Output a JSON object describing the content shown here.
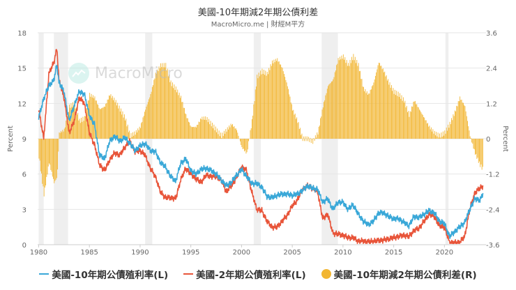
{
  "header": {
    "title": "美國-10年期減2年期公債利差",
    "subtitle": "MacroMicro.me | 財經M平方"
  },
  "watermark": {
    "text": "MacroMicro",
    "icon": "chart-line-icon"
  },
  "colors": {
    "ten_year": "#3aa8d8",
    "two_year": "#e8553a",
    "spread": "#f2b632",
    "recession_band": "#efefef",
    "grid": "#e6e6e6"
  },
  "legend": [
    {
      "label": "美國-10年期公債殖利率(L)",
      "color": "#3aa8d8",
      "shape": "line"
    },
    {
      "label": "美國-2年期公債殖利率(L)",
      "color": "#e8553a",
      "shape": "line"
    },
    {
      "label": "美國-10年期減2年期公債利差(R)",
      "color": "#f2b632",
      "shape": "circle"
    }
  ],
  "chart_data": {
    "type": "line+bar",
    "title": "美國-10年期減2年期公債利差",
    "subtitle": "MacroMicro.me | 財經M平方",
    "xlabel": "",
    "ylabel_left": "Percent",
    "ylabel_right": "Percent",
    "x_ticks": [
      "1980",
      "1985",
      "1990",
      "1995",
      "2000",
      "2005",
      "2010",
      "2015",
      "2020"
    ],
    "y_left_ticks": [
      0,
      3,
      6,
      9,
      12,
      15,
      18
    ],
    "y_right_ticks": [
      -3.6,
      -2.4,
      -1.2,
      0,
      1.2,
      2.4,
      3.6
    ],
    "ylim_left": [
      0,
      18
    ],
    "ylim_right": [
      -3.6,
      3.6
    ],
    "grid": true,
    "legend_position": "bottom",
    "recession_shading": [
      [
        1980.0,
        1980.5
      ],
      [
        1981.5,
        1982.9
      ],
      [
        1990.5,
        1991.2
      ],
      [
        2001.2,
        2001.9
      ],
      [
        2007.9,
        2009.5
      ],
      [
        2020.1,
        2020.4
      ]
    ],
    "x": [
      1980,
      1980.5,
      1981,
      1981.5,
      1981.8,
      1982,
      1982.5,
      1983,
      1983.5,
      1984,
      1984.5,
      1985,
      1985.5,
      1986,
      1986.5,
      1987,
      1987.5,
      1988,
      1988.5,
      1989,
      1989.5,
      1990,
      1990.5,
      1991,
      1991.5,
      1992,
      1992.5,
      1993,
      1993.5,
      1994,
      1994.5,
      1995,
      1995.5,
      1996,
      1996.5,
      1997,
      1997.5,
      1998,
      1998.5,
      1999,
      1999.5,
      2000,
      2000.5,
      2001,
      2001.5,
      2002,
      2002.5,
      2003,
      2003.5,
      2004,
      2004.5,
      2005,
      2005.5,
      2006,
      2006.5,
      2007,
      2007.5,
      2008,
      2008.5,
      2009,
      2009.5,
      2010,
      2010.5,
      2011,
      2011.5,
      2012,
      2012.5,
      2013,
      2013.5,
      2014,
      2014.5,
      2015,
      2015.5,
      2016,
      2016.5,
      2017,
      2017.5,
      2018,
      2018.5,
      2019,
      2019.5,
      2020,
      2020.5,
      2021,
      2021.5,
      2022,
      2022.5,
      2023,
      2023.5,
      2023.8
    ],
    "series": [
      {
        "name": "美國-10年期公債殖利率(L)",
        "axis": "left",
        "type": "line",
        "values": [
          10.8,
          12.4,
          13.5,
          14.0,
          15.3,
          13.8,
          13.0,
          10.5,
          11.8,
          13.0,
          12.8,
          11.0,
          10.2,
          7.6,
          7.3,
          8.8,
          9.2,
          8.8,
          9.1,
          8.6,
          8.0,
          8.4,
          8.6,
          8.0,
          7.9,
          7.0,
          6.6,
          5.8,
          5.4,
          6.9,
          7.3,
          6.3,
          6.0,
          6.4,
          6.5,
          6.3,
          6.0,
          5.5,
          5.0,
          5.3,
          5.9,
          6.4,
          5.8,
          5.2,
          5.2,
          4.9,
          4.1,
          4.0,
          4.2,
          4.3,
          4.3,
          4.2,
          4.3,
          4.6,
          5.0,
          4.8,
          4.7,
          3.6,
          3.9,
          3.0,
          3.6,
          3.6,
          3.0,
          3.4,
          2.6,
          2.0,
          1.7,
          2.0,
          2.7,
          2.7,
          2.4,
          2.2,
          2.2,
          1.9,
          1.6,
          2.4,
          2.3,
          2.6,
          2.9,
          2.7,
          2.0,
          1.8,
          0.7,
          1.1,
          1.5,
          1.9,
          3.0,
          3.9,
          3.8,
          4.3
        ]
      },
      {
        "name": "美國-2年期公債殖利率(L)",
        "axis": "left",
        "type": "line",
        "values": [
          11.5,
          9.0,
          14.5,
          15.5,
          16.7,
          14.0,
          12.5,
          9.5,
          10.5,
          12.5,
          12.0,
          9.5,
          8.5,
          6.8,
          6.3,
          7.2,
          7.8,
          7.6,
          8.3,
          8.8,
          7.9,
          8.0,
          7.6,
          6.5,
          5.8,
          4.5,
          4.0,
          4.0,
          3.9,
          5.5,
          6.5,
          6.0,
          5.6,
          5.3,
          5.9,
          5.8,
          5.8,
          5.5,
          4.5,
          5.0,
          5.7,
          6.6,
          6.3,
          4.5,
          3.0,
          2.9,
          2.0,
          1.5,
          1.5,
          2.0,
          2.5,
          3.3,
          3.8,
          4.7,
          5.0,
          4.8,
          4.5,
          2.2,
          2.6,
          1.0,
          0.9,
          0.8,
          0.6,
          0.6,
          0.3,
          0.3,
          0.25,
          0.3,
          0.35,
          0.4,
          0.5,
          0.6,
          0.7,
          0.8,
          0.7,
          1.2,
          1.4,
          2.0,
          2.6,
          2.4,
          1.6,
          1.5,
          0.2,
          0.15,
          0.2,
          0.7,
          3.0,
          4.4,
          4.8,
          5.0
        ]
      },
      {
        "name": "美國-10年期減2年期公債利差(R)",
        "axis": "right",
        "type": "bar",
        "values": [
          -0.6,
          -1.9,
          -0.8,
          -1.5,
          -1.3,
          0.2,
          0.3,
          1.1,
          1.2,
          0.6,
          0.7,
          1.5,
          1.4,
          1.0,
          1.1,
          1.5,
          1.3,
          1.0,
          0.7,
          0.1,
          0.2,
          0.4,
          1.0,
          1.5,
          2.2,
          2.5,
          2.5,
          1.9,
          1.7,
          1.4,
          0.8,
          0.4,
          0.4,
          0.7,
          0.7,
          0.5,
          0.3,
          0.1,
          0.3,
          0.5,
          0.3,
          -0.3,
          -0.5,
          0.6,
          2.1,
          2.3,
          2.2,
          2.6,
          2.7,
          2.4,
          1.8,
          1.0,
          0.6,
          0.0,
          0.0,
          -0.1,
          0.2,
          1.1,
          1.8,
          2.0,
          2.7,
          2.8,
          2.5,
          2.8,
          2.5,
          1.7,
          1.5,
          1.9,
          2.6,
          2.3,
          1.9,
          1.6,
          1.5,
          1.3,
          0.8,
          1.3,
          1.0,
          0.7,
          0.4,
          0.2,
          0.1,
          0.2,
          0.5,
          0.9,
          1.4,
          1.1,
          0.1,
          -0.5,
          -0.9,
          -1.05
        ]
      }
    ]
  }
}
